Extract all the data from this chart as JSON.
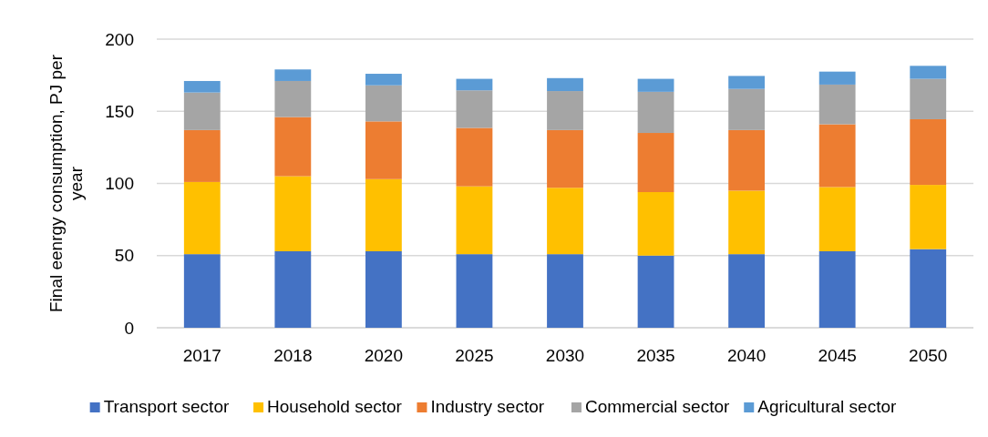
{
  "chart_data": {
    "type": "bar",
    "stacked": true,
    "ylabel": "Final eenrgy consumption, PJ per year",
    "categories": [
      "2017",
      "2018",
      "2020",
      "2025",
      "2030",
      "2035",
      "2040",
      "2045",
      "2050"
    ],
    "series": [
      {
        "name": "Transport sector",
        "color": "#4472c4",
        "values": [
          51,
          53,
          53,
          51,
          51,
          50,
          51,
          53,
          54.5
        ]
      },
      {
        "name": "Household sector",
        "color": "#ffc000",
        "values": [
          50,
          52,
          50,
          47,
          46,
          44,
          44,
          44.5,
          44.5
        ]
      },
      {
        "name": "Industry sector",
        "color": "#ed7d31",
        "values": [
          36,
          41,
          40,
          40.5,
          40,
          41,
          42,
          43.5,
          45.5
        ]
      },
      {
        "name": "Commercial sector",
        "color": "#a5a5a5",
        "values": [
          26,
          25,
          25,
          26,
          27,
          28.5,
          28.5,
          27.5,
          28
        ]
      },
      {
        "name": "Agricultural sector",
        "color": "#5b9bd5",
        "values": [
          8,
          8,
          8,
          8,
          9,
          9,
          9,
          9,
          9
        ]
      }
    ],
    "ylim": [
      0,
      200
    ],
    "yticks": [
      0,
      50,
      100,
      150,
      200
    ],
    "grid": "y",
    "legend": "bottom"
  }
}
